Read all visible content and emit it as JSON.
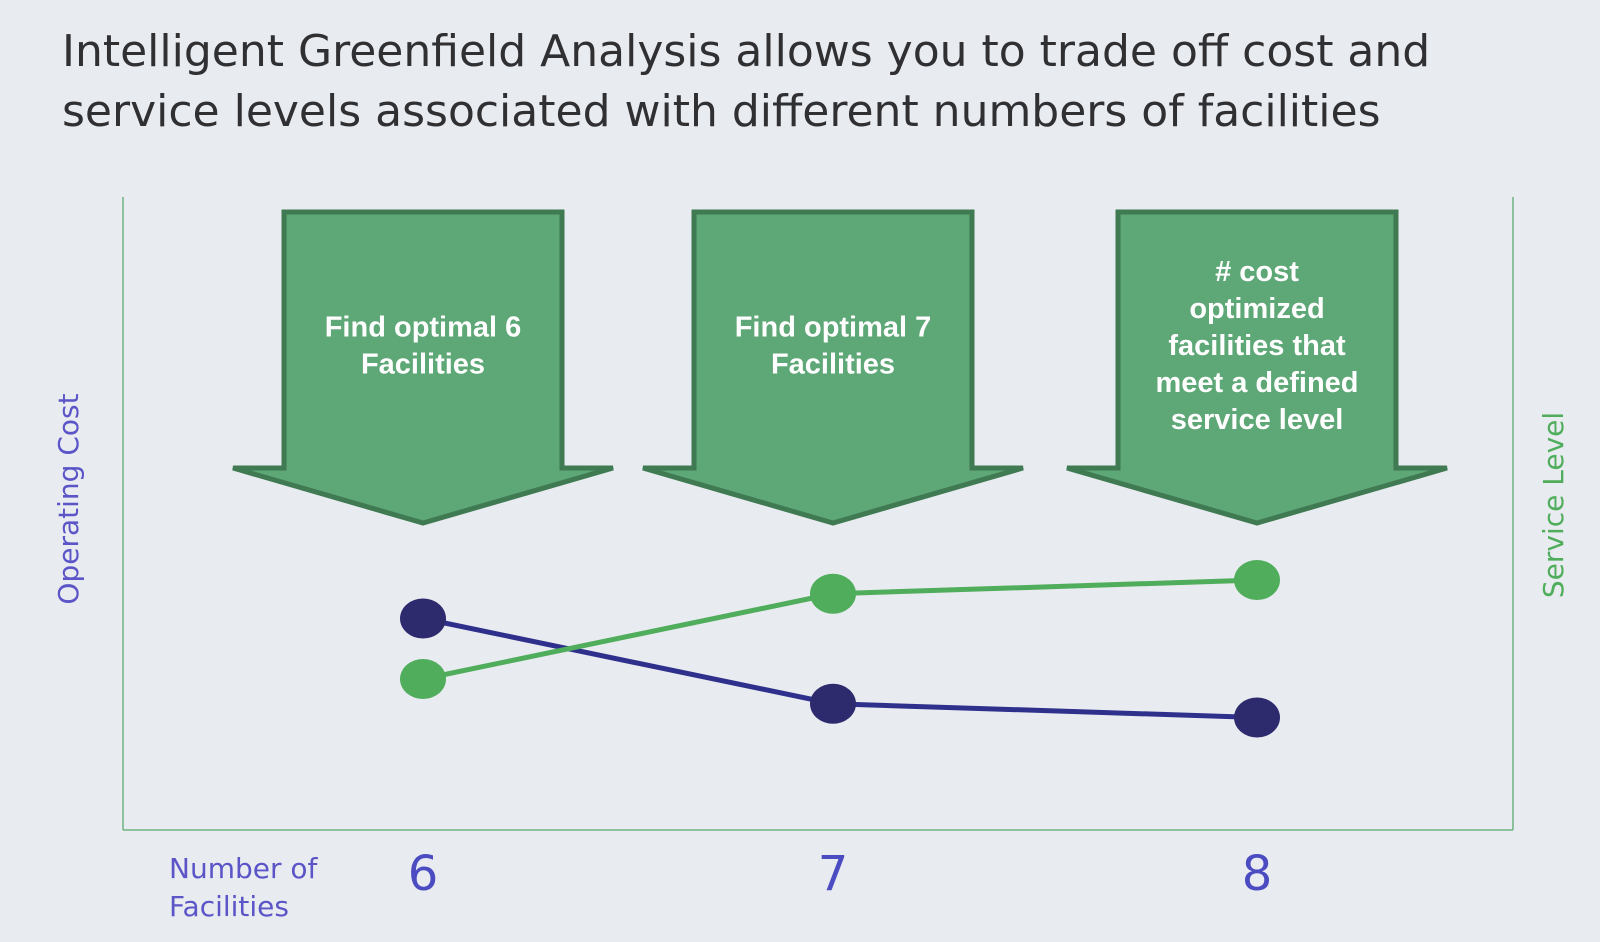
{
  "title_lines": [
    "Intelligent Greenfield Analysis allows you to trade off cost and",
    "service levels associated with different numbers of facilities"
  ],
  "colors": {
    "background": "#e8ebf0",
    "arrow_fill": "#5ea776",
    "arrow_stroke": "#3f7a52",
    "frame": "#6fb37f",
    "cost_series": "#2e2a6e",
    "cost_line": "#2f2f8c",
    "service_series": "#4fad5b",
    "axis_label_left": "#5b55c8",
    "axis_label_right": "#4fad5b",
    "tick_label": "#4b4bc2"
  },
  "chart_data": {
    "type": "line",
    "x": [
      6,
      7,
      8
    ],
    "xlabel_lines": [
      "Number of",
      "Facilities"
    ],
    "ylabel_left": "Operating Cost",
    "ylabel_right": "Service Level",
    "series": [
      {
        "name": "Operating Cost",
        "axis": "left",
        "values": [
          0.66,
          0.35,
          0.3
        ],
        "color": "#2e2a6e"
      },
      {
        "name": "Service Level",
        "axis": "right",
        "values": [
          0.44,
          0.75,
          0.8
        ],
        "color": "#4fad5b"
      }
    ],
    "ylim": [
      0,
      1
    ],
    "grid": false,
    "annotations": [
      {
        "x": 6,
        "lines": [
          "Find optimal 6",
          "Facilities"
        ]
      },
      {
        "x": 7,
        "lines": [
          "Find optimal 7",
          "Facilities"
        ]
      },
      {
        "x": 8,
        "lines": [
          "# cost",
          "optimized",
          "facilities that",
          "meet a defined",
          "service level"
        ]
      }
    ]
  }
}
